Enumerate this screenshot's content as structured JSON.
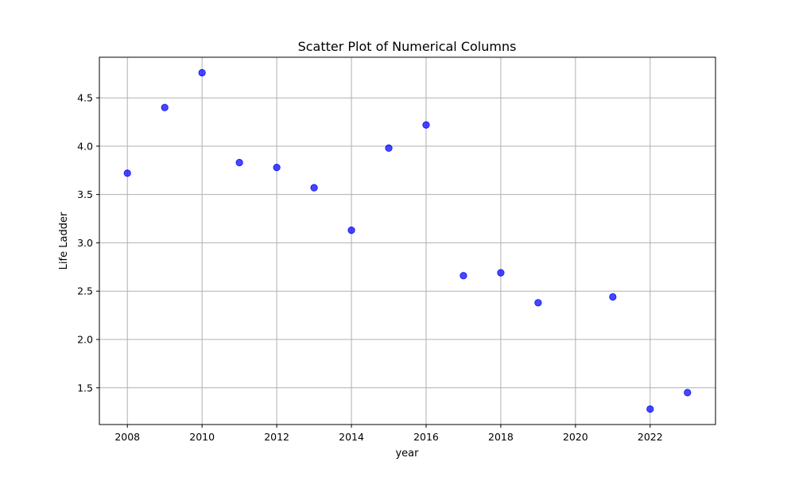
{
  "chart_data": {
    "type": "scatter",
    "title": "Scatter Plot of Numerical Columns",
    "xlabel": "year",
    "ylabel": "Life Ladder",
    "xlim": [
      2007.25,
      2023.75
    ],
    "ylim": [
      1.12,
      4.92
    ],
    "x_ticks": [
      2008,
      2010,
      2012,
      2014,
      2016,
      2018,
      2020,
      2022
    ],
    "y_ticks": [
      1.5,
      2.0,
      2.5,
      3.0,
      3.5,
      4.0,
      4.5
    ],
    "x_tick_labels": [
      "2008",
      "2010",
      "2012",
      "2014",
      "2016",
      "2018",
      "2020",
      "2022"
    ],
    "y_tick_labels": [
      "1.5",
      "2.0",
      "2.5",
      "3.0",
      "3.5",
      "4.0",
      "4.5"
    ],
    "grid": true,
    "point_color": "#0000ff",
    "grid_color": "#b0b0b0",
    "x": [
      2008,
      2009,
      2010,
      2011,
      2012,
      2013,
      2014,
      2015,
      2016,
      2017,
      2018,
      2019,
      2021,
      2022,
      2023
    ],
    "y": [
      3.72,
      4.4,
      4.76,
      3.83,
      3.78,
      3.57,
      3.13,
      3.98,
      4.22,
      2.66,
      2.69,
      2.38,
      2.44,
      1.28,
      1.45
    ]
  }
}
